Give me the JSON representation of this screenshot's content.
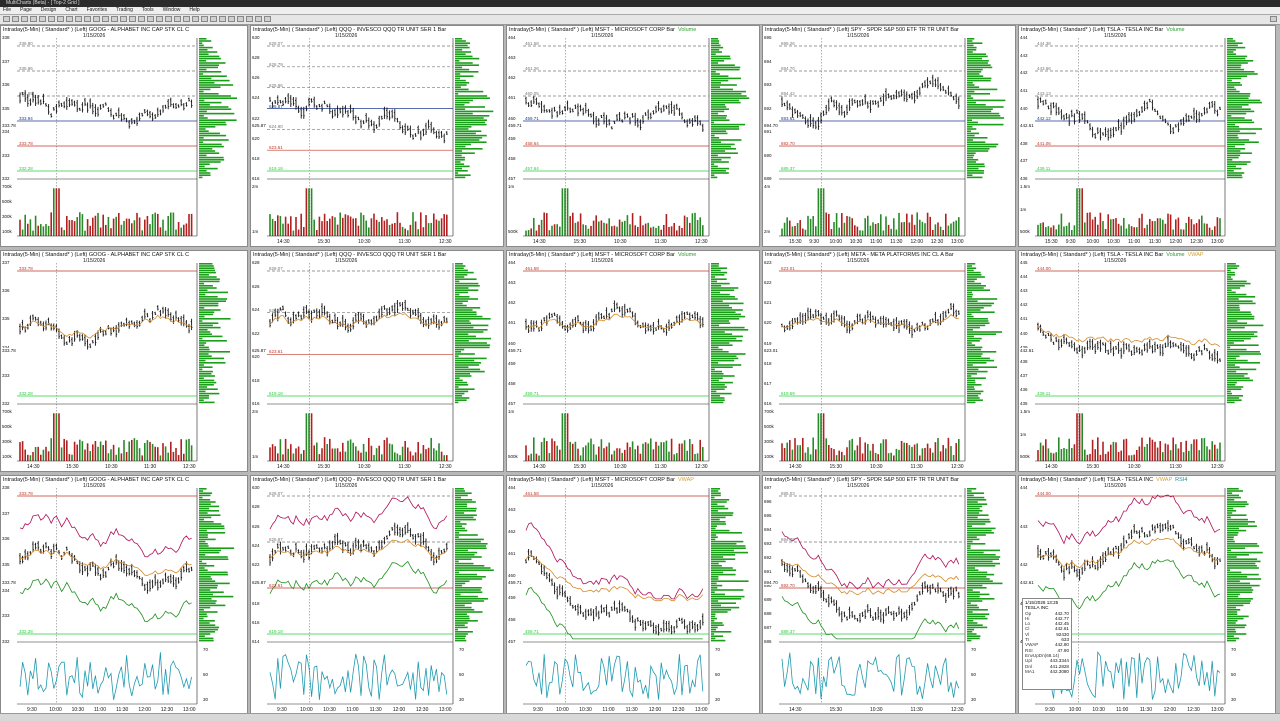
{
  "window": {
    "title": "MultiCharts (Beta) - [ Top-2 Grid ]"
  },
  "menu": [
    "File",
    "Page",
    "Design",
    "Chart",
    "Favorites",
    "Trading",
    "Tools",
    "Window",
    "Help"
  ],
  "panels": [
    {
      "id": "p1",
      "header": "Intraday(5-Min) ( Standard* )  (Left)    GOOG - ALPHABET INC CAP STK CL C",
      "date": "1/15/2026",
      "vol_label": "",
      "vwap_label": "",
      "rsi_label": "",
      "price_ticks": [
        "338",
        "337",
        "336",
        "335",
        "334",
        "333",
        "332"
      ],
      "sub_ticks": [
        "700k",
        "500k",
        "300k",
        "100k"
      ],
      "x_ticks": [],
      "level_labels": [
        "336.80",
        "335.86",
        "334.89",
        "333.94",
        "333.78",
        "332.28"
      ],
      "last_price": "333.78"
    },
    {
      "id": "p2",
      "header": "Intraday(5-Min) ( Standard* )  (Left)    QQQ - INVESCO QQQ TR UNIT SER 1  Bar",
      "date": "1/15/2026",
      "vol_label": "",
      "vwap_label": "",
      "rsi_label": "",
      "price_ticks": [
        "630",
        "628",
        "626",
        "624",
        "622",
        "620",
        "618",
        "616"
      ],
      "sub_ticks": [
        "2m",
        "1m"
      ],
      "x_ticks": [
        "14:30",
        "15:30",
        "10:30",
        "11:30",
        "12:30"
      ],
      "level_labels": [
        "628.07",
        "626.79",
        "625.96",
        "625.87",
        "624.90",
        "623.61",
        "619.18"
      ],
      "last_price": "625.87"
    },
    {
      "id": "p3",
      "header": "Intraday(5-Min) ( Standard* )  (Left)    MSFT - MICROSOFT CORP  Bar",
      "date": "1/15/2026",
      "vol_label": "Volume",
      "vwap_label": "",
      "rsi_label": "",
      "price_ticks": [
        "464",
        "463",
        "462",
        "461",
        "460",
        "459",
        "458",
        "457"
      ],
      "sub_ticks": [
        "1m",
        "500k"
      ],
      "x_ticks": [
        "14:30",
        "15:30",
        "10:30",
        "11:30",
        "12:30"
      ],
      "level_labels": [
        "461.58",
        "461.26",
        "460.05",
        "459.71",
        "458.64",
        "457.64"
      ],
      "last_price": "459.71"
    },
    {
      "id": "p4",
      "header": "Intraday(5-Min) ( Standard* )  (Left)    SPY - SPDR S&P 500 ETF TR TR UNIT  Bar",
      "date": "1/15/2026",
      "vol_label": "",
      "vwap_label": "",
      "rsi_label": "",
      "price_ticks": [
        "695",
        "694",
        "693",
        "692",
        "691",
        "690",
        "689"
      ],
      "sub_ticks": [
        "4m",
        "2m"
      ],
      "x_ticks": [
        "15:30",
        "9:30",
        "10:00",
        "10:30",
        "11:00",
        "11:30",
        "12:00",
        "12:30",
        "13:00"
      ],
      "level_labels": [
        "695.26",
        "694.70",
        "694.42",
        "693.61",
        "692.70",
        "689.37"
      ],
      "last_price": "694.70"
    },
    {
      "id": "p5",
      "header": "Intraday(5-Min) ( Standard* )  (Left)    TSLA - TESLA INC  Bar",
      "date": "1/15/2026",
      "vol_label": "Volume",
      "vwap_label": "",
      "rsi_label": "",
      "price_ticks": [
        "444",
        "443",
        "442",
        "441",
        "440",
        "439",
        "438",
        "437",
        "436"
      ],
      "sub_ticks": [
        "1.5m",
        "1m",
        "500k"
      ],
      "x_ticks": [
        "15:30",
        "9:30",
        "10:00",
        "10:30",
        "11:00",
        "11:30",
        "12:00",
        "12:30",
        "13:00"
      ],
      "level_labels": [
        "444.38",
        "443.66",
        "443.13",
        "442.12",
        "441.06",
        "439.11"
      ],
      "last_price": "442.61"
    },
    {
      "id": "p6",
      "header": "Intraday(5-Min) ( Standard* )  (Left)    GOOG - ALPHABET INC CAP STK CL C",
      "date": "1/15/2026",
      "vol_label": "",
      "vwap_label": "",
      "rsi_label": "",
      "price_ticks": [
        "337",
        "336",
        "335",
        "334",
        "333",
        "332"
      ],
      "sub_ticks": [
        "700k",
        "500k",
        "300k",
        "100k"
      ],
      "x_ticks": [
        "14:30",
        "15:30",
        "10:30",
        "11:30",
        "12:30"
      ],
      "level_labels": [
        "333.78",
        "332.28"
      ],
      "last_price": "333.78"
    },
    {
      "id": "p7",
      "header": "Intraday(5-Min) ( Standard* )  (Left)    QQQ - INVESCO QQQ TR UNIT SER 1  Bar",
      "date": "1/15/2026",
      "vol_label": "",
      "vwap_label": "",
      "rsi_label": "",
      "price_ticks": [
        "628",
        "626",
        "624",
        "622",
        "620",
        "618",
        "616"
      ],
      "sub_ticks": [
        "2m",
        "1m"
      ],
      "x_ticks": [
        "14:30",
        "15:30",
        "10:30",
        "11:30",
        "12:30"
      ],
      "level_labels": [
        "628.07",
        "625.87",
        "623.61",
        "619.18"
      ],
      "last_price": "625.87"
    },
    {
      "id": "p8",
      "header": "Intraday(5-Min) ( Standard* )  (Left)    MSFT - MICROSOFT CORP  Bar",
      "date": "1/15/2026",
      "vol_label": "Volume",
      "vwap_label": "",
      "rsi_label": "",
      "price_ticks": [
        "464",
        "463",
        "462",
        "461",
        "460",
        "459",
        "458",
        "457"
      ],
      "sub_ticks": [
        "1m",
        "500k"
      ],
      "x_ticks": [
        "14:30",
        "15:30",
        "10:30",
        "11:30",
        "12:30"
      ],
      "level_labels": [
        "461.58",
        "459.71"
      ],
      "last_price": "459.71"
    },
    {
      "id": "p9",
      "header": "Intraday(5-Min) ( Standard* )  (Left)    META - META PLATFORMS INC CL A  Bar",
      "date": "1/15/2026",
      "vol_label": "",
      "vwap_label": "",
      "rsi_label": "",
      "price_ticks": [
        "623",
        "622",
        "621",
        "620",
        "619",
        "618",
        "617",
        "616"
      ],
      "sub_ticks": [
        "700k",
        "500k",
        "300k",
        "100k"
      ],
      "x_ticks": [
        "14:30",
        "15:30",
        "10:30",
        "11:30",
        "12:30"
      ],
      "level_labels": [
        "623.01",
        "619.59"
      ],
      "last_price": "623.01"
    },
    {
      "id": "p10",
      "header": "Intraday(5-Min) ( Standard* )  (Left)    TSLA - TESLA INC  Bar",
      "date": "1/15/2026",
      "vol_label": "Volume",
      "vwap_label": "VWAP",
      "rsi_label": "",
      "price_ticks": [
        "445",
        "444",
        "443",
        "442",
        "441",
        "440",
        "439",
        "438",
        "437",
        "436",
        "435"
      ],
      "sub_ticks": [
        "1.5m",
        "1m",
        "500k"
      ],
      "x_ticks": [
        "14:30",
        "15:30",
        "10:30",
        "11:30",
        "12:30"
      ],
      "level_labels": [
        "444.00",
        "439.11"
      ],
      "last_price": "442.61"
    },
    {
      "id": "p11",
      "header": "Intraday(5-Min) ( Standard* )  (Left)    GOOG - ALPHABET INC CAP STK CL C",
      "date": "1/15/2026",
      "vol_label": "",
      "vwap_label": "",
      "rsi_label": "",
      "price_ticks": [
        "338",
        "337",
        "336",
        "335",
        "334",
        "333",
        "332"
      ],
      "sub_ticks": [
        "70",
        "50",
        "30"
      ],
      "x_ticks": [
        "9:30",
        "10:00",
        "10:30",
        "11:00",
        "11:30",
        "12:00",
        "12:30",
        "13:00"
      ],
      "level_labels": [
        "333.78",
        "332.28"
      ],
      "last_price": "333.78"
    },
    {
      "id": "p12",
      "header": "Intraday(5-Min) ( Standard* )  (Left)    QQQ - INVESCO QQQ TR UNIT SER 1  Bar",
      "date": "1/15/2026",
      "vol_label": "",
      "vwap_label": "",
      "rsi_label": "",
      "price_ticks": [
        "630",
        "628",
        "626",
        "624",
        "622",
        "620",
        "618",
        "616",
        "614"
      ],
      "sub_ticks": [
        "70",
        "50",
        "30"
      ],
      "x_ticks": [
        "9:30",
        "10:00",
        "10:30",
        "11:00",
        "11:30",
        "12:00",
        "12:30",
        "13:00"
      ],
      "level_labels": [
        "628.07",
        "625.87",
        "623.61",
        "619.18"
      ],
      "last_price": "625.87"
    },
    {
      "id": "p13",
      "header": "Intraday(5-Min) ( Standard* )  (Left)    MSFT - MICROSOFT CORP  Bar",
      "date": "1/15/2026",
      "vol_label": "",
      "vwap_label": "VWAP",
      "rsi_label": "",
      "price_ticks": [
        "464",
        "463",
        "462",
        "461",
        "460",
        "459",
        "458",
        "457"
      ],
      "sub_ticks": [
        "70",
        "50",
        "30"
      ],
      "x_ticks": [
        "9:30",
        "10:00",
        "10:30",
        "11:00",
        "11:30",
        "12:00",
        "12:30",
        "13:00"
      ],
      "level_labels": [
        "461.58",
        "459.71"
      ],
      "last_price": "459.71"
    },
    {
      "id": "p14",
      "header": "Intraday(5-Min) ( Standard* )  (Left)    SPY - SPDR S&P 500 ETF TR TR UNIT  Bar",
      "date": "1/15/2026",
      "vol_label": "",
      "vwap_label": "",
      "rsi_label": "",
      "price_ticks": [
        "697",
        "696",
        "695",
        "694",
        "693",
        "692",
        "691",
        "690",
        "689",
        "688",
        "687",
        "686"
      ],
      "sub_ticks": [
        "70",
        "50",
        "30"
      ],
      "x_ticks": [
        "14:30",
        "15:30",
        "10:30",
        "11:30",
        "12:30"
      ],
      "level_labels": [
        "695.03",
        "694.70",
        "692.70",
        "689.37"
      ],
      "last_price": "694.70"
    },
    {
      "id": "p15",
      "header": "Intraday(5-Min) ( Standard* )  (Left)    TSLA - TESLA INC",
      "date": "1/15/2026",
      "vol_label": "",
      "vwap_label": "VWAP",
      "rsi_label": "RSI4",
      "price_ticks": [
        "444",
        "443",
        "442",
        "441",
        "440"
      ],
      "sub_ticks": [
        "70",
        "50",
        "30"
      ],
      "x_ticks": [
        "9:30",
        "10:00",
        "10:30",
        "11:00",
        "11:30",
        "12:00",
        "12:30",
        "13:00"
      ],
      "level_labels": [
        "444.00",
        "439.11"
      ],
      "last_price": "442.61"
    }
  ],
  "databox": {
    "title": "1/15/2026 13:25",
    "symbol": "TESLA INC",
    "rows": [
      {
        "k": "Op",
        "v": "442.70"
      },
      {
        "k": "Hi",
        "v": "442.77"
      },
      {
        "k": "Lo",
        "v": "442.45"
      },
      {
        "k": "Cl",
        "v": "442.61"
      },
      {
        "k": "Vl",
        "v": "92430"
      },
      {
        "k": "Tr",
        "v": "633"
      },
      {
        "k": "VWAP",
        "v": "442.80"
      },
      {
        "k": "RSI",
        "v": "47.90"
      },
      {
        "k": "EnvUpDn(68.14)",
        "v": ""
      },
      {
        "k": "Upl",
        "v": "443.3344"
      },
      {
        "k": "Dnl",
        "v": "441.2828"
      },
      {
        "k": "MA1",
        "v": "442.3080"
      }
    ]
  },
  "colors": {
    "up": "#111111",
    "support": "#c0392b",
    "resist": "#1f3a93",
    "green_level": "#2ecc40",
    "profile": "#1a9e1a",
    "vwap": "#d48a2a",
    "upper_band": "#b0105a",
    "lower_band": "#1f8f1f",
    "ma": "#1f9ab0"
  }
}
